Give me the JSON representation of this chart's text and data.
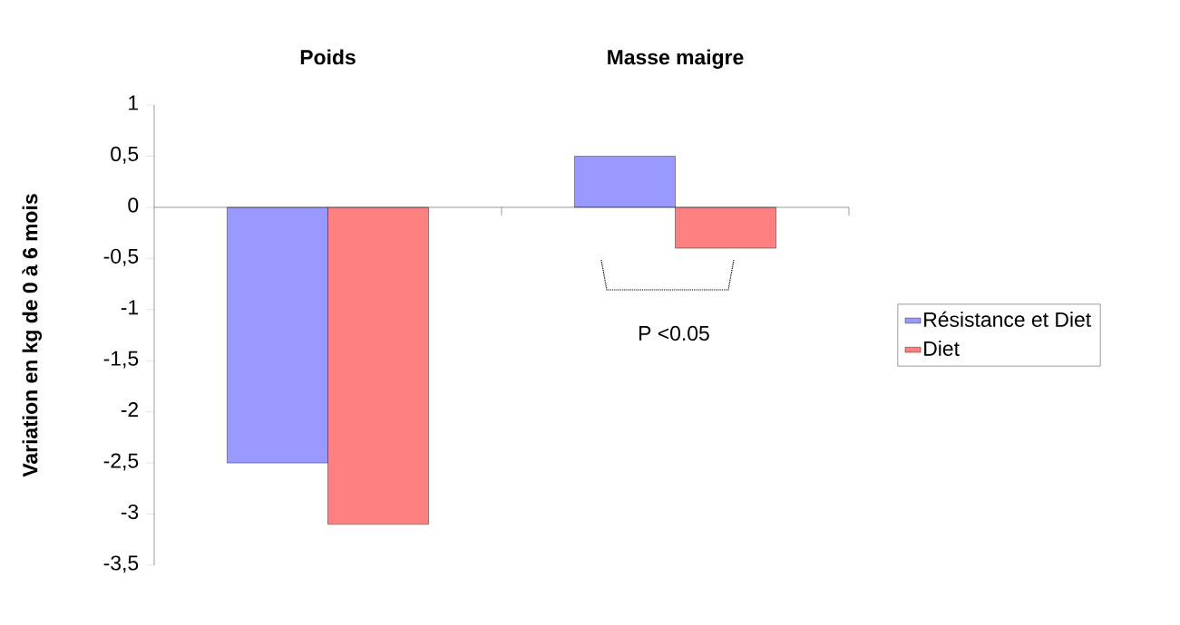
{
  "chart_data": {
    "type": "bar",
    "ylabel": "Variation en kg de 0 à 6 mois",
    "categories": [
      "Poids",
      "Masse maigre"
    ],
    "series": [
      {
        "name": "Résistance et Diet",
        "color": "#9999ff",
        "values": [
          -2.5,
          0.5
        ]
      },
      {
        "name": "Diet",
        "color": "#ff8080",
        "values": [
          -3.1,
          -0.4
        ]
      }
    ],
    "ylim": [
      -3.5,
      1
    ],
    "yticks": [
      {
        "value": -3.5,
        "label": "-3,5"
      },
      {
        "value": -3,
        "label": "-3"
      },
      {
        "value": -2.5,
        "label": "-2,5"
      },
      {
        "value": -2,
        "label": "-2"
      },
      {
        "value": -1.5,
        "label": "-1,5"
      },
      {
        "value": -1,
        "label": "-1"
      },
      {
        "value": -0.5,
        "label": "-0,5"
      },
      {
        "value": 0,
        "label": "0"
      },
      {
        "value": 0.5,
        "label": "0,5"
      },
      {
        "value": 1,
        "label": "1"
      }
    ],
    "ref_lines": [
      {
        "axis": "y",
        "value": 0
      }
    ],
    "legend": "right",
    "annotations": [
      "P <0.05"
    ]
  }
}
